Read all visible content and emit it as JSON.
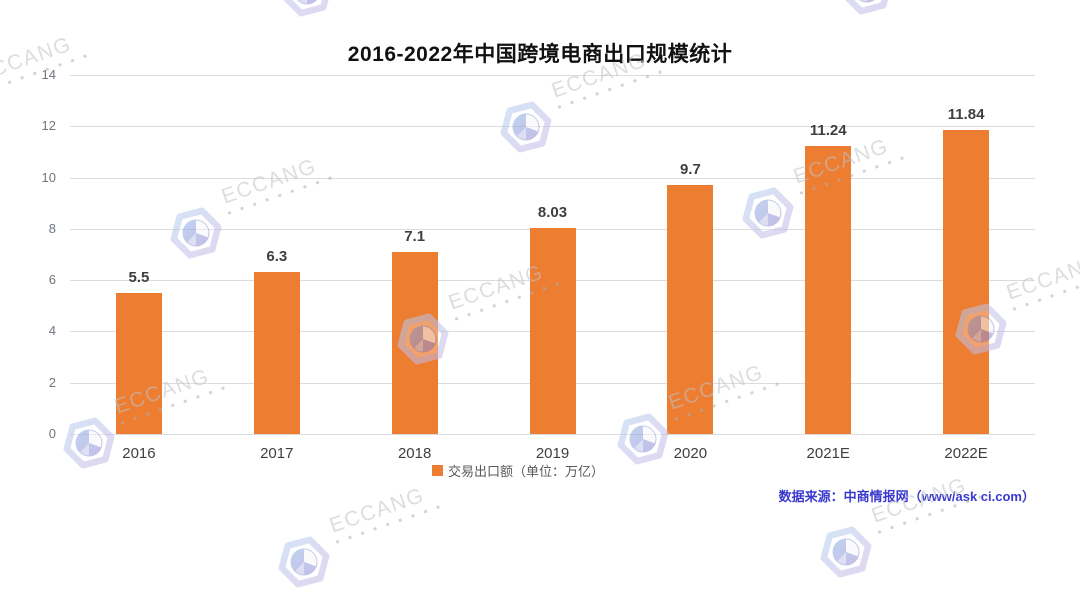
{
  "title": "2016-2022年中国跨境电商出口规模统计",
  "chart_data": {
    "type": "bar",
    "categories": [
      "2016",
      "2017",
      "2018",
      "2019",
      "2020",
      "2021E",
      "2022E"
    ],
    "values": [
      5.5,
      6.3,
      7.1,
      8.03,
      9.7,
      11.24,
      11.84
    ],
    "value_labels": [
      "5.5",
      "6.3",
      "7.1",
      "8.03",
      "9.7",
      "11.24",
      "11.84"
    ],
    "title": "2016-2022年中国跨境电商出口规模统计",
    "xlabel": "",
    "ylabel": "",
    "ylim": [
      0,
      14
    ],
    "yticks": [
      0,
      2,
      4,
      6,
      8,
      10,
      12,
      14
    ],
    "grid": true,
    "legend": [
      "交易出口额（单位：万亿）"
    ],
    "legend_position": "bottom-center",
    "bar_color": "#ED7D31"
  },
  "legend": {
    "label": "交易出口额（单位：万亿）",
    "swatch_color": "#ED7D31"
  },
  "source": {
    "text": "数据来源：中商情报网（www/ask ci.com）"
  },
  "watermark": {
    "text": "ECCANG",
    "dots": "■ ■ ■ ■ ■ ■ ■ ■ ■"
  },
  "colors": {
    "bar": "#ED7D31",
    "grid": "#dcdcdc",
    "y_tick": "#6e7681",
    "x_label": "#3f3f3f",
    "value_label": "#3f3f3f",
    "legend_text": "#595959",
    "source_text": "#3a3acf"
  }
}
